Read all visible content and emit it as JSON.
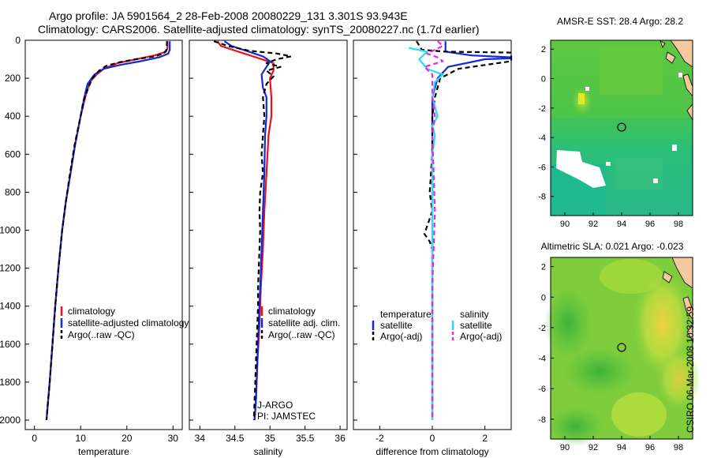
{
  "title": {
    "line1": "Argo profile: JA 5901564_2 28-Feb-2008 20080229_131 3.301S 93.943E",
    "line2": "Climatology: CARS2006. Satellite-adjusted climatology: synTS_20080227.nc (1.7d earlier)"
  },
  "footer": "CSIRO 06-Mar-2008 10:32:59",
  "colors": {
    "climatology": "#e8141c",
    "satellite": "#1528d8",
    "argo": "#000000",
    "sal_satellite": "#22e0ee",
    "sal_argo": "#ee22ee",
    "land": "#f5c9a0"
  },
  "chart_data": [
    {
      "type": "line",
      "id": "temperature",
      "xlabel": "temperature",
      "ylabel": "",
      "xlim": [
        -2,
        32
      ],
      "ylim": [
        2050,
        0
      ],
      "xticks": [
        0,
        10,
        20,
        30
      ],
      "xtick_labels": [
        "0",
        "10",
        "20",
        "30"
      ],
      "yticks": [
        0,
        200,
        400,
        600,
        800,
        1000,
        1200,
        1400,
        1600,
        1800,
        2000
      ],
      "ytick_labels": [
        "0",
        "200",
        "400",
        "600",
        "800",
        "1000",
        "1200",
        "1400",
        "1600",
        "1800",
        "2000"
      ],
      "legend": [
        "climatology",
        "satellite-adjusted climatology",
        "Argo(..raw -QC)"
      ],
      "series": [
        {
          "name": "climatology",
          "color": "#e8141c",
          "dash": "",
          "points": [
            [
              28.8,
              5
            ],
            [
              28.8,
              40
            ],
            [
              28.5,
              60
            ],
            [
              26,
              80
            ],
            [
              22,
              100
            ],
            [
              18,
              120
            ],
            [
              15,
              150
            ],
            [
              13.5,
              180
            ],
            [
              12,
              220
            ],
            [
              11,
              300
            ],
            [
              10,
              400
            ],
            [
              8.8,
              550
            ],
            [
              7.8,
              700
            ],
            [
              6.8,
              850
            ],
            [
              6,
              1000
            ],
            [
              5.2,
              1200
            ],
            [
              4.5,
              1400
            ],
            [
              3.9,
              1600
            ],
            [
              3.3,
              1800
            ],
            [
              2.6,
              2000
            ]
          ]
        },
        {
          "name": "satellite-adjusted climatology",
          "color": "#1528d8",
          "dash": "",
          "points": [
            [
              29.3,
              5
            ],
            [
              29.3,
              50
            ],
            [
              29,
              70
            ],
            [
              27,
              90
            ],
            [
              23,
              110
            ],
            [
              18.5,
              130
            ],
            [
              15,
              150
            ],
            [
              13,
              180
            ],
            [
              11.5,
              230
            ],
            [
              10.8,
              300
            ],
            [
              10,
              400
            ],
            [
              8.8,
              550
            ],
            [
              7.8,
              700
            ],
            [
              6.8,
              850
            ],
            [
              6,
              1000
            ],
            [
              5.2,
              1200
            ],
            [
              4.5,
              1400
            ],
            [
              3.9,
              1600
            ],
            [
              3.3,
              1800
            ],
            [
              2.6,
              2000
            ]
          ]
        },
        {
          "name": "Argo(..raw -QC)",
          "color": "#000000",
          "dash": "6,4",
          "points": [
            [
              28.7,
              5
            ],
            [
              28.6,
              50
            ],
            [
              28,
              70
            ],
            [
              26,
              85
            ],
            [
              22,
              100
            ],
            [
              18.5,
              115
            ],
            [
              15.5,
              135
            ],
            [
              14,
              160
            ],
            [
              12.5,
              200
            ],
            [
              11.5,
              260
            ],
            [
              10.6,
              320
            ],
            [
              10,
              400
            ],
            [
              8.7,
              550
            ],
            [
              7.7,
              700
            ],
            [
              6.8,
              850
            ],
            [
              6,
              1000
            ],
            [
              5.2,
              1200
            ],
            [
              4.5,
              1400
            ],
            [
              3.9,
              1600
            ],
            [
              3.3,
              1800
            ],
            [
              2.6,
              2000
            ]
          ]
        }
      ]
    },
    {
      "type": "line",
      "id": "salinity",
      "xlabel": "salinity",
      "ylabel": "",
      "xlim": [
        33.85,
        36.1
      ],
      "ylim": [
        2050,
        0
      ],
      "xticks": [
        34,
        34.5,
        35,
        35.5,
        36
      ],
      "xtick_labels": [
        "34",
        "34.5",
        "35",
        "35.5",
        "36"
      ],
      "legend": [
        "climatology",
        "satellite adj. clim.",
        "Argo(..raw -QC)"
      ],
      "annotations": [
        "J-ARGO",
        "PI: JAMSTEC"
      ],
      "series": [
        {
          "name": "climatology",
          "color": "#e8141c",
          "dash": "",
          "points": [
            [
              34.25,
              5
            ],
            [
              34.3,
              30
            ],
            [
              34.55,
              60
            ],
            [
              34.8,
              90
            ],
            [
              35.05,
              120
            ],
            [
              35.05,
              160
            ],
            [
              35.0,
              200
            ],
            [
              35.02,
              300
            ],
            [
              35.02,
              400
            ],
            [
              34.98,
              500
            ],
            [
              34.95,
              700
            ],
            [
              34.92,
              900
            ],
            [
              34.9,
              1100
            ],
            [
              34.87,
              1300
            ],
            [
              34.85,
              1500
            ],
            [
              34.82,
              1700
            ],
            [
              34.8,
              1900
            ],
            [
              34.78,
              2000
            ]
          ]
        },
        {
          "name": "satellite adj. clim.",
          "color": "#1528d8",
          "dash": "",
          "points": [
            [
              34.35,
              5
            ],
            [
              34.45,
              30
            ],
            [
              34.7,
              60
            ],
            [
              34.9,
              85
            ],
            [
              35.0,
              110
            ],
            [
              34.95,
              140
            ],
            [
              34.88,
              180
            ],
            [
              34.9,
              250
            ],
            [
              34.95,
              300
            ],
            [
              34.95,
              400
            ],
            [
              34.93,
              500
            ],
            [
              34.92,
              700
            ],
            [
              34.9,
              900
            ],
            [
              34.88,
              1100
            ],
            [
              34.86,
              1300
            ],
            [
              34.84,
              1500
            ],
            [
              34.82,
              1700
            ],
            [
              34.8,
              1900
            ],
            [
              34.78,
              2000
            ]
          ]
        },
        {
          "name": "Argo(..raw -QC)",
          "color": "#000000",
          "dash": "6,4",
          "points": [
            [
              34.2,
              5
            ],
            [
              34.4,
              30
            ],
            [
              34.7,
              55
            ],
            [
              35.1,
              70
            ],
            [
              35.3,
              85
            ],
            [
              35.1,
              100
            ],
            [
              34.95,
              120
            ],
            [
              35.15,
              140
            ],
            [
              34.95,
              160
            ],
            [
              35.05,
              190
            ],
            [
              34.95,
              230
            ],
            [
              34.9,
              300
            ],
            [
              34.92,
              400
            ],
            [
              34.9,
              500
            ],
            [
              34.88,
              600
            ],
            [
              34.9,
              700
            ],
            [
              34.86,
              800
            ],
            [
              34.85,
              900
            ],
            [
              34.86,
              1000
            ],
            [
              34.85,
              1100
            ],
            [
              34.84,
              1200
            ],
            [
              34.83,
              1300
            ],
            [
              34.83,
              1400
            ],
            [
              34.82,
              1500
            ],
            [
              34.81,
              1600
            ],
            [
              34.8,
              1700
            ],
            [
              34.79,
              1800
            ],
            [
              34.78,
              1900
            ],
            [
              34.77,
              2000
            ]
          ]
        }
      ]
    },
    {
      "type": "line",
      "id": "difference",
      "xlabel": "difference from climatology",
      "ylabel": "",
      "xlim": [
        -3,
        3
      ],
      "ylim": [
        2050,
        0
      ],
      "xticks": [
        -2,
        0,
        2
      ],
      "xtick_labels": [
        "-2",
        "0",
        "2"
      ],
      "legend": [
        "temperature",
        "satellite",
        "Argo(-adj)",
        "salinity",
        "satellite",
        "Argo(-adj)"
      ],
      "series": [
        {
          "name": "temperature satellite",
          "color": "#1528d8",
          "dash": "",
          "points": [
            [
              0.5,
              5
            ],
            [
              0.5,
              60
            ],
            [
              1.5,
              80
            ],
            [
              3,
              90
            ],
            [
              3,
              95
            ],
            [
              2,
              100
            ],
            [
              0.6,
              140
            ],
            [
              0.2,
              200
            ],
            [
              0,
              300
            ],
            [
              0,
              600
            ],
            [
              0,
              1000
            ],
            [
              0,
              1500
            ],
            [
              0,
              2000
            ]
          ]
        },
        {
          "name": "temperature Argo(-adj)",
          "color": "#000000",
          "dash": "6,4",
          "points": [
            [
              -0.6,
              5
            ],
            [
              -0.4,
              50
            ],
            [
              0.5,
              60
            ],
            [
              3,
              65
            ],
            [
              3,
              110
            ],
            [
              1,
              150
            ],
            [
              0.3,
              200
            ],
            [
              0.1,
              300
            ],
            [
              0,
              400
            ],
            [
              0,
              600
            ],
            [
              -0.1,
              800
            ],
            [
              0,
              900
            ],
            [
              -0.2,
              980
            ],
            [
              -0.3,
              1020
            ],
            [
              -0.1,
              1060
            ],
            [
              0,
              1100
            ],
            [
              0,
              1500
            ],
            [
              0,
              2000
            ]
          ]
        },
        {
          "name": "salinity satellite",
          "color": "#22e0ee",
          "dash": "",
          "points": [
            [
              -0.9,
              40
            ],
            [
              -0.2,
              60
            ],
            [
              -0.5,
              100
            ],
            [
              -0.2,
              150
            ],
            [
              0.4,
              180
            ],
            [
              0.1,
              220
            ],
            [
              0,
              300
            ],
            [
              0.2,
              400
            ],
            [
              0,
              450
            ],
            [
              0.1,
              500
            ],
            [
              0,
              600
            ],
            [
              0,
              800
            ],
            [
              0,
              1000
            ],
            [
              0,
              1500
            ],
            [
              0,
              2000
            ]
          ]
        },
        {
          "name": "salinity Argo(-adj)",
          "color": "#ee22ee",
          "dash": "6,4",
          "points": [
            [
              0.2,
              5
            ],
            [
              0.4,
              30
            ],
            [
              -0.2,
              70
            ],
            [
              0.2,
              90
            ],
            [
              0.4,
              110
            ],
            [
              -0.3,
              140
            ],
            [
              0,
              180
            ],
            [
              0,
              300
            ],
            [
              0.1,
              400
            ],
            [
              0,
              500
            ],
            [
              0.05,
              700
            ],
            [
              0.1,
              900
            ],
            [
              0.05,
              1100
            ],
            [
              0,
              1300
            ],
            [
              0,
              1500
            ],
            [
              0,
              2000
            ]
          ]
        }
      ]
    },
    {
      "type": "heatmap",
      "id": "sst-map",
      "title": "AMSR-E SST: 28.4 Argo: 28.2",
      "xlim": [
        89,
        99
      ],
      "ylim": [
        -9.3,
        2.6
      ],
      "xticks": [
        90,
        92,
        94,
        96,
        98
      ],
      "xtick_labels": [
        "90",
        "92",
        "94",
        "96",
        "98"
      ],
      "yticks": [
        2,
        0,
        -2,
        -4,
        -6,
        -8
      ],
      "ytick_labels": [
        "2",
        "0",
        "-2",
        "-4",
        "-6",
        "-8"
      ],
      "marker": [
        94,
        -3.3
      ]
    },
    {
      "type": "heatmap",
      "id": "sla-map",
      "title": "Altimetric SLA: 0.021 Argo: -0.023",
      "xlim": [
        89,
        99
      ],
      "ylim": [
        -9.3,
        2.6
      ],
      "xticks": [
        90,
        92,
        94,
        96,
        98
      ],
      "xtick_labels": [
        "90",
        "92",
        "94",
        "96",
        "98"
      ],
      "yticks": [
        2,
        0,
        -2,
        -4,
        -6,
        -8
      ],
      "ytick_labels": [
        "2",
        "0",
        "-2",
        "-4",
        "-6",
        "-8"
      ],
      "marker": [
        94,
        -3.3
      ]
    }
  ]
}
